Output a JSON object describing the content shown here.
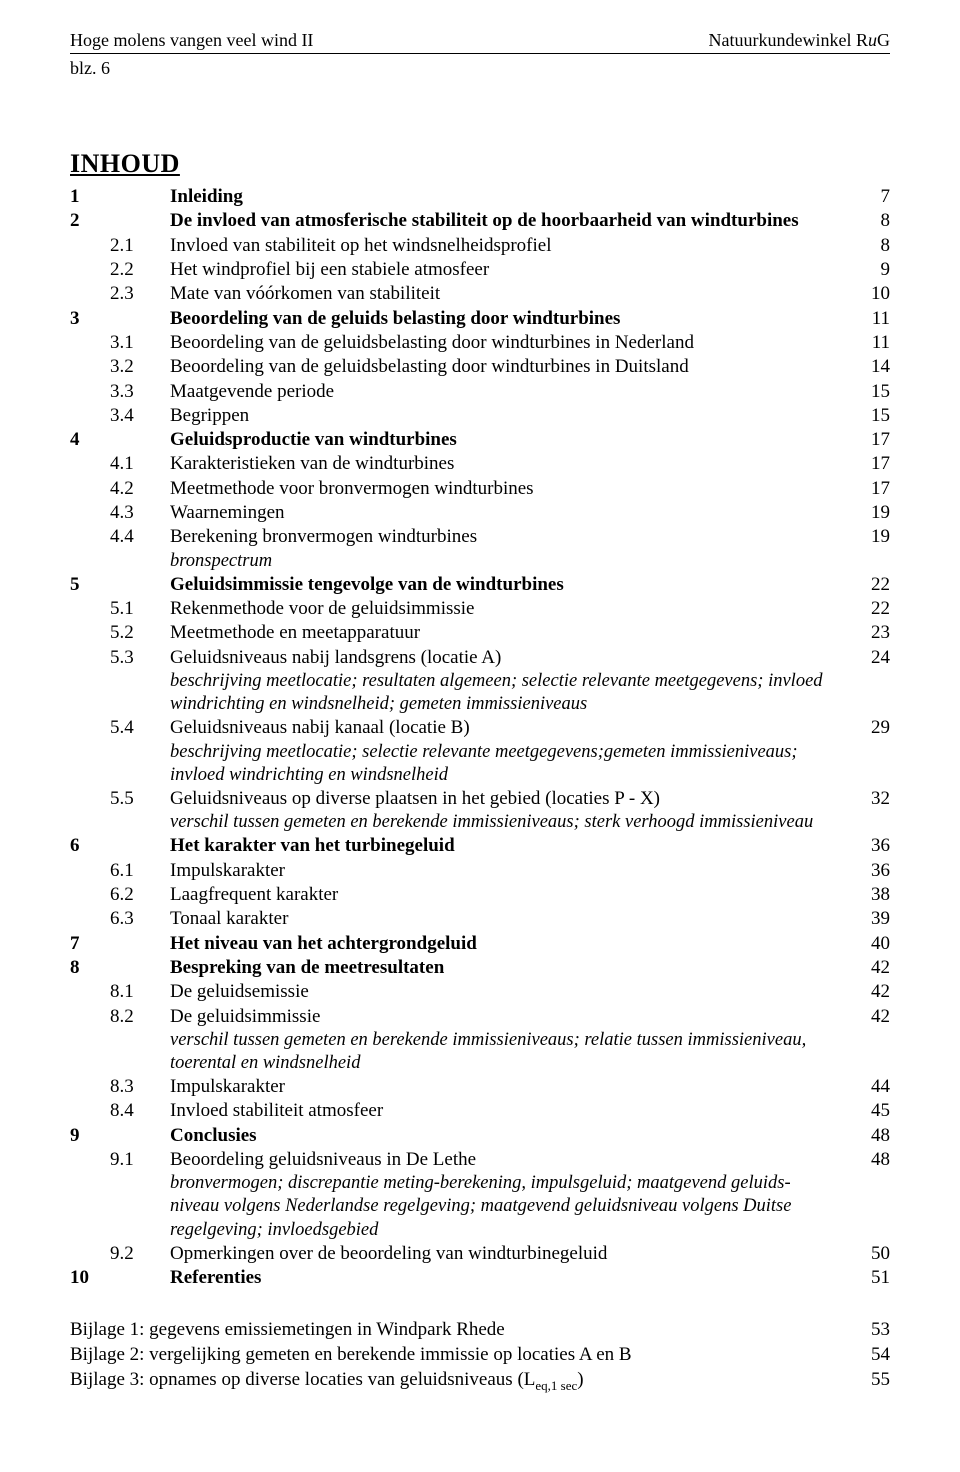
{
  "header": {
    "left": "Hoge molens vangen veel wind II",
    "right_prefix": "Natuurkundewinkel ",
    "right_r": "R",
    "right_u": "u",
    "right_g": "G",
    "page_label": "blz. 6"
  },
  "toc_title": "INHOUD",
  "entries": [
    {
      "level": 0,
      "num": "1",
      "text": "Inleiding",
      "page": "7",
      "bold": true
    },
    {
      "level": 0,
      "num": "2",
      "text": "De invloed van atmosferische stabiliteit op de hoorbaarheid van windturbines",
      "page": "8",
      "bold": true
    },
    {
      "level": 1,
      "num": "2.1",
      "text": "Invloed van stabiliteit op het windsnelheidsprofiel",
      "page": "8"
    },
    {
      "level": 1,
      "num": "2.2",
      "text": "Het windprofiel bij een stabiele atmosfeer",
      "page": "9"
    },
    {
      "level": 1,
      "num": "2.3",
      "text": "Mate van vóórkomen van stabiliteit",
      "page": "10"
    },
    {
      "level": 0,
      "num": "3",
      "text": "Beoordeling van de geluids belasting door windturbines",
      "page": "11",
      "bold": true
    },
    {
      "level": 1,
      "num": "3.1",
      "text": "Beoordeling van de geluidsbelasting door windturbines in Nederland",
      "page": "11"
    },
    {
      "level": 1,
      "num": "3.2",
      "text": "Beoordeling van de geluidsbelasting door windturbines in Duitsland",
      "page": "14"
    },
    {
      "level": 1,
      "num": "3.3",
      "text": "Maatgevende periode",
      "page": "15"
    },
    {
      "level": 1,
      "num": "3.4",
      "text": "Begrippen",
      "page": "15"
    },
    {
      "level": 0,
      "num": "4",
      "text": "Geluidsproductie van windturbines",
      "page": "17",
      "bold": true
    },
    {
      "level": 1,
      "num": "4.1",
      "text": "Karakteristieken van de windturbines",
      "page": "17"
    },
    {
      "level": 1,
      "num": "4.2",
      "text": "Meetmethode voor bronvermogen windturbines",
      "page": "17"
    },
    {
      "level": 1,
      "num": "4.3",
      "text": "Waarnemingen",
      "page": "19"
    },
    {
      "level": 1,
      "num": "4.4",
      "text": "Berekening bronvermogen windturbines",
      "page": "19"
    },
    {
      "note": "bronspectrum"
    },
    {
      "level": 0,
      "num": "5",
      "text": "Geluidsimmissie tengevolge van de windturbines",
      "page": "22",
      "bold": true
    },
    {
      "level": 1,
      "num": "5.1",
      "text": "Rekenmethode voor de geluidsimmissie",
      "page": "22"
    },
    {
      "level": 1,
      "num": "5.2",
      "text": "Meetmethode en meetapparatuur",
      "page": "23"
    },
    {
      "level": 1,
      "num": "5.3",
      "text": "Geluidsniveaus nabij landsgrens (locatie A)",
      "page": "24"
    },
    {
      "note": "beschrijving meetlocatie; resultaten algemeen; selectie relevante meetgegevens; invloed windrichting en windsnelheid; gemeten immissieniveaus"
    },
    {
      "level": 1,
      "num": "5.4",
      "text": "Geluidsniveaus nabij kanaal (locatie B)",
      "page": "29"
    },
    {
      "note": "beschrijving meetlocatie; selectie relevante meetgegevens;gemeten immissieniveaus; invloed windrichting en windsnelheid"
    },
    {
      "level": 1,
      "num": "5.5",
      "text": "Geluidsniveaus op diverse plaatsen in het gebied (locaties P - X)",
      "page": "32"
    },
    {
      "note": "verschil tussen gemeten en berekende immissieniveaus; sterk verhoogd immissieniveau"
    },
    {
      "level": 0,
      "num": "6",
      "text": "Het karakter van het turbinegeluid",
      "page": "36",
      "bold": true
    },
    {
      "level": 1,
      "num": "6.1",
      "text": "Impulskarakter",
      "page": "36"
    },
    {
      "level": 1,
      "num": "6.2",
      "text": "Laagfrequent karakter",
      "page": "38"
    },
    {
      "level": 1,
      "num": "6.3",
      "text": "Tonaal karakter",
      "page": "39"
    },
    {
      "level": 0,
      "num": "7",
      "text": "Het niveau van het achtergrondgeluid",
      "page": "40",
      "bold": true
    },
    {
      "level": 0,
      "num": "8",
      "text": "Bespreking van de meetresultaten",
      "page": "42",
      "bold": true
    },
    {
      "level": 1,
      "num": "8.1",
      "text": "De geluidsemissie",
      "page": "42"
    },
    {
      "level": 1,
      "num": "8.2",
      "text": "De geluidsimmissie",
      "page": "42"
    },
    {
      "note": "verschil tussen gemeten en berekende immissieniveaus; relatie tussen immissieniveau, toerental en windsnelheid"
    },
    {
      "level": 1,
      "num": "8.3",
      "text": "Impulskarakter",
      "page": "44"
    },
    {
      "level": 1,
      "num": "8.4",
      "text": "Invloed stabiliteit atmosfeer",
      "page": "45"
    },
    {
      "level": 0,
      "num": "9",
      "text": "Conclusies",
      "page": "48",
      "bold": true
    },
    {
      "level": 1,
      "num": "9.1",
      "text": "Beoordeling geluidsniveaus in De Lethe",
      "page": "48"
    },
    {
      "note": "bronvermogen; discrepantie meting-berekening, impulsgeluid; maatgevend geluids-niveau volgens Nederlandse regelgeving; maatgevend geluidsniveau volgens Duitse regelgeving; invloedsgebied"
    },
    {
      "level": 1,
      "num": "9.2",
      "text": "Opmerkingen over de beoordeling van windturbinegeluid",
      "page": "50"
    },
    {
      "level": 0,
      "num": "10",
      "text": "Referenties",
      "page": "51",
      "bold": true
    }
  ],
  "appendix": [
    {
      "text": "Bijlage 1: gegevens emissiemetingen in Windpark Rhede",
      "page": "53"
    },
    {
      "text": "Bijlage 2:  vergelijking gemeten en berekende immissie op locaties A en B",
      "page": "54"
    },
    {
      "text_html": "Bijlage 3: opnames op diverse locaties van geluidsniveaus (L<span class='sub'>eq,1 sec</span>)",
      "page": "55"
    }
  ]
}
